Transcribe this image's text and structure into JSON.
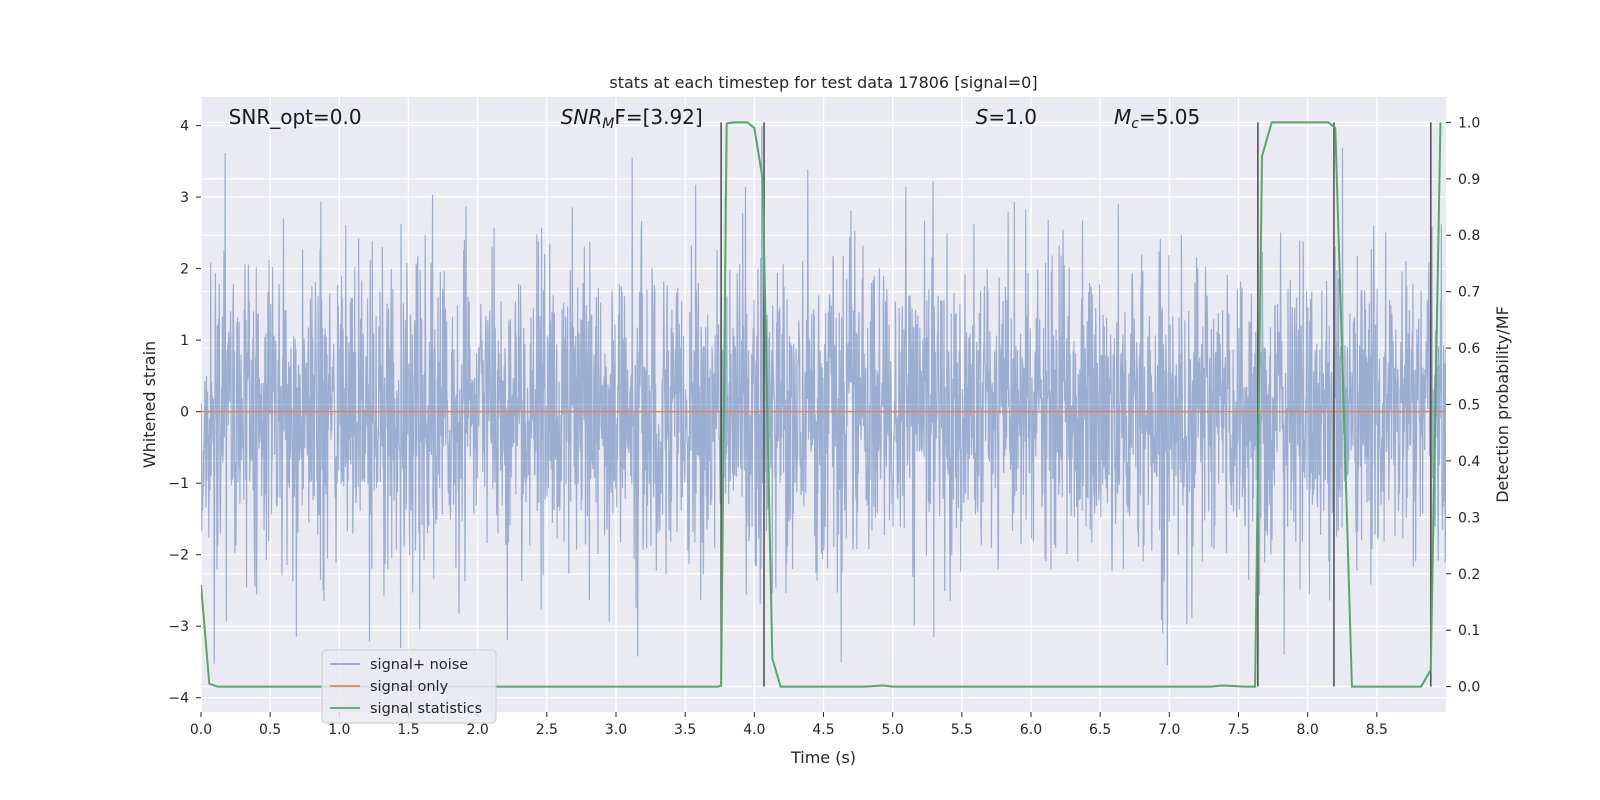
{
  "chart_data": {
    "type": "line",
    "title": "stats at each timestep for test data 17806 [signal=0]",
    "xlabel": "Time (s)",
    "ylabel": "Whitened strain",
    "y2label": "Detection probability/MF",
    "xlim": [
      0,
      9.0
    ],
    "ylim": [
      -4.2,
      4.4
    ],
    "y2lim": [
      -0.045,
      1.045
    ],
    "x_ticks": [
      0.0,
      0.5,
      1.0,
      1.5,
      2.0,
      2.5,
      3.0,
      3.5,
      4.0,
      4.5,
      5.0,
      5.5,
      6.0,
      6.5,
      7.0,
      7.5,
      8.0,
      8.5
    ],
    "x_tick_labels": [
      "0.0",
      "0.5",
      "1.0",
      "1.5",
      "2.0",
      "2.5",
      "3.0",
      "3.5",
      "4.0",
      "4.5",
      "5.0",
      "5.5",
      "6.0",
      "6.5",
      "7.0",
      "7.5",
      "8.0",
      "8.5"
    ],
    "y_ticks": [
      4,
      3,
      2,
      1,
      0,
      -1,
      -2,
      -3,
      -4
    ],
    "y_tick_labels": [
      "4",
      "3",
      "2",
      "1",
      "0",
      "−1",
      "−2",
      "−3",
      "−4"
    ],
    "y2_ticks": [
      1.0,
      0.9,
      0.8,
      0.7,
      0.6,
      0.5,
      0.4,
      0.3,
      0.2,
      0.1,
      0.0
    ],
    "y2_tick_labels": [
      "1.0",
      "0.9",
      "0.8",
      "0.7",
      "0.6",
      "0.5",
      "0.4",
      "0.3",
      "0.2",
      "0.1",
      "0.0"
    ],
    "grid": true,
    "annotations": [
      {
        "prefix": "SNR_opt",
        "sub": "",
        "suffix": "=0.0",
        "italic": false,
        "x": 0.2
      },
      {
        "prefix": "SNR",
        "sub": "M",
        "suffix": "F=[3.92]",
        "italic": true,
        "x": 2.6
      },
      {
        "prefix": "S",
        "sub": "",
        "suffix": "=1.0",
        "italic": true,
        "x": 5.6
      },
      {
        "prefix": "M",
        "sub": "c",
        "suffix": "=5.05",
        "italic": true,
        "x": 6.6
      }
    ],
    "legend": {
      "position": "lower-left",
      "entries": [
        "signal+ noise",
        "signal only",
        "signal statistics"
      ]
    },
    "series": [
      {
        "name": "signal+ noise",
        "axis": "left",
        "style": "noise",
        "duration": 9.0,
        "typical_amplitude": [
          -2.2,
          2.4
        ],
        "max_amplitude": [
          -3.75,
          4.0
        ]
      },
      {
        "name": "signal only",
        "axis": "left",
        "x": [
          0,
          9.0
        ],
        "y": [
          0,
          0
        ]
      },
      {
        "name": "signal statistics",
        "axis": "right",
        "x": [
          0.0,
          0.06,
          0.12,
          3.74,
          3.76,
          3.8,
          3.85,
          3.95,
          4.0,
          4.06,
          4.13,
          4.19,
          4.8,
          4.93,
          5.0,
          7.3,
          7.38,
          7.55,
          7.62,
          7.67,
          7.74,
          7.8,
          8.15,
          8.2,
          8.26,
          8.32,
          8.82,
          8.89,
          8.96
        ],
        "y": [
          0.18,
          0.005,
          0.0,
          0.0,
          0.002,
          0.998,
          1.0,
          1.0,
          0.99,
          0.9,
          0.05,
          0.0,
          0.0,
          0.002,
          0.0,
          0.0,
          0.002,
          0.0,
          0.0,
          0.94,
          1.0,
          1.0,
          1.0,
          0.99,
          0.5,
          0.0,
          0.0,
          0.03,
          1.0
        ]
      }
    ],
    "vertical_lines": [
      {
        "x": 3.76,
        "from": 0.0,
        "to": 1.0
      },
      {
        "x": 4.07,
        "from": 0.0,
        "to": 1.0
      },
      {
        "x": 7.64,
        "from": 0.0,
        "to": 1.0
      },
      {
        "x": 8.19,
        "from": 0.0,
        "to": 1.0
      },
      {
        "x": 8.89,
        "from": 0.0,
        "to": 1.0
      }
    ],
    "colors": {
      "background": "#eaeaf2",
      "grid": "#ffffff",
      "noise": "#4c72b0",
      "signal": "#dd8452",
      "statistics": "#55a868",
      "vlines": "#555555",
      "text": "#262626"
    }
  }
}
